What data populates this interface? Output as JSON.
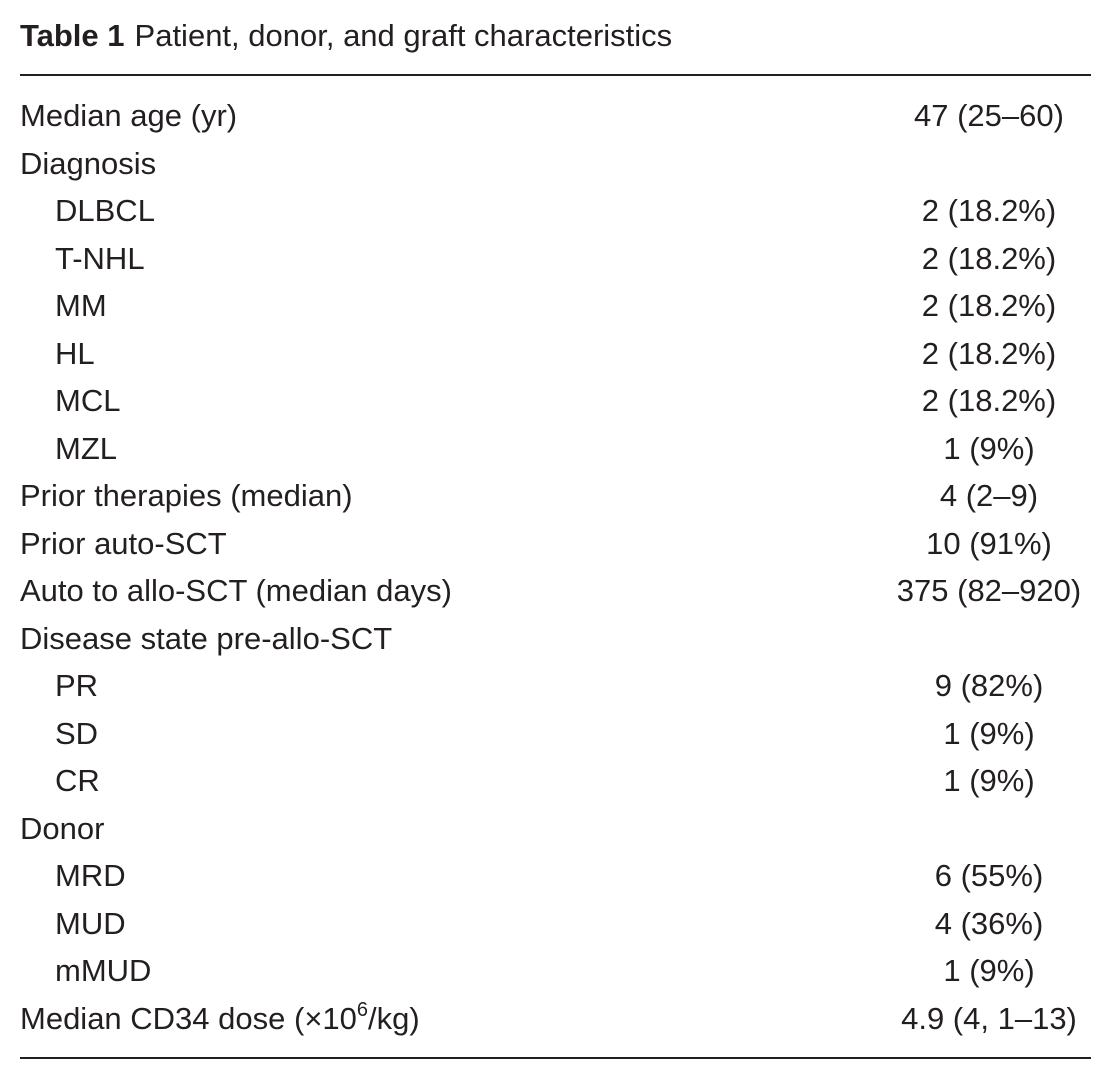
{
  "caption": {
    "label": "Table 1",
    "title": "Patient, donor, and graft characteristics"
  },
  "rows": [
    {
      "label": "Median age (yr)",
      "value": "47 (25–60)"
    },
    {
      "label": "Diagnosis",
      "value": ""
    },
    {
      "label": "DLBCL",
      "value": "2 (18.2%)"
    },
    {
      "label": "T-NHL",
      "value": "2 (18.2%)"
    },
    {
      "label": "MM",
      "value": "2 (18.2%)"
    },
    {
      "label": "HL",
      "value": "2 (18.2%)"
    },
    {
      "label": "MCL",
      "value": "2 (18.2%)"
    },
    {
      "label": "MZL",
      "value": "1 (9%)"
    },
    {
      "label": "Prior therapies (median)",
      "value": "4 (2–9)"
    },
    {
      "label": "Prior auto-SCT",
      "value": "10 (91%)"
    },
    {
      "label": "Auto to allo-SCT (median days)",
      "value": "375 (82–920)"
    },
    {
      "label": "Disease state pre-allo-SCT",
      "value": ""
    },
    {
      "label": "PR",
      "value": "9 (82%)"
    },
    {
      "label": "SD",
      "value": "1 (9%)"
    },
    {
      "label": "CR",
      "value": "1 (9%)"
    },
    {
      "label": "Donor",
      "value": ""
    },
    {
      "label": "MRD",
      "value": "6 (55%)"
    },
    {
      "label": "MUD",
      "value": "4 (36%)"
    },
    {
      "label": "mMUD",
      "value": "1 (9%)"
    },
    {
      "label_prefix": "Median CD34 dose (×10",
      "label_sup": "6",
      "label_suffix": "/kg)",
      "value": "4.9 (4, 1–13)"
    }
  ]
}
